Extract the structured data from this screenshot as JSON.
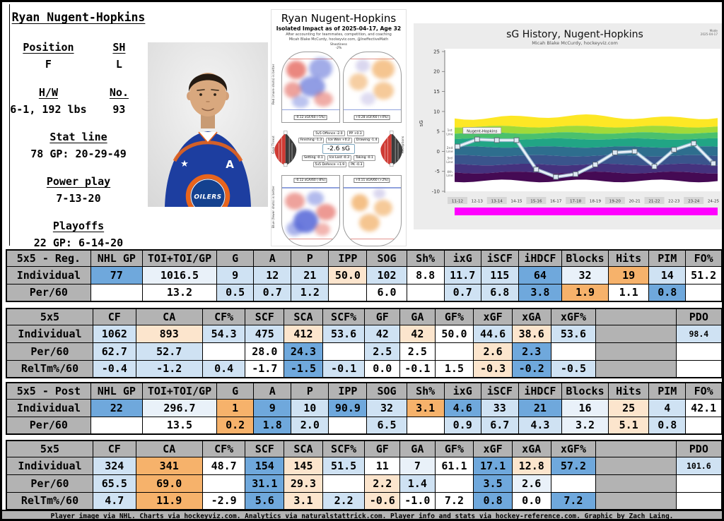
{
  "player_panel": {
    "name": "Ryan Nugent-Hopkins",
    "position_label": "Position",
    "position": "F",
    "shoots_label": "SH",
    "shoots": "L",
    "hw_label": "H/W",
    "hw": "6-1, 192 lbs",
    "number_label": "No.",
    "number": "93",
    "statline_label": "Stat line",
    "statline": "78 GP: 20-29-49",
    "pp_label": "Power play",
    "pp": "7-13-20",
    "playoffs_label": "Playoffs",
    "playoffs": "22 GP: 6-14-20"
  },
  "photo": {
    "jersey_logo": "OILERS",
    "alternate_letter": "A",
    "jersey_color": "#1d3ea0",
    "accent_color": "#e8641c"
  },
  "impact_card": {
    "title": "Ryan Nugent-Hopkins",
    "subtitle": "Isolated Impact as of 2025-04-17, Age 32",
    "note1": "After accounting for teammates, competition, and coaching",
    "note2": "Micah Blake McCurdy, hockeyviz.com, @IneffectiveMath",
    "shootiness_label": "Shootiness",
    "shootiness_value": "-2%",
    "axis_top": "Red (more shots) is better",
    "axis_bottom": "Blue (fewer shots) is better",
    "violin_left_label": "Goal Threat",
    "violin_right_label": "Receptions",
    "offence_left": "-0.12 xGF/60 (-5%)",
    "offence_right": "+0.28 xGF/60 (+4%)",
    "defence_left": "-0.12 xGA/60 (-8%)",
    "defence_right": "+0.11 xGA/60 (+2%)",
    "center_value": "-2.6 sG",
    "node_rows": [
      [
        "5v5 Offence -2.0",
        "PP +0.3"
      ],
      [
        "Finishing -1.3",
        "Ice Won +0.2",
        "Drawing -1.4"
      ],
      [
        "Setting -0.1",
        "Ice Lost -0.3",
        "Taking -0.1"
      ],
      [
        "5v5 Defence +1.9",
        "PK -0.3"
      ]
    ]
  },
  "chart_data": {
    "type": "line",
    "title": "sG History, Nugent-Hopkins",
    "subtitle": "Micah Blake McCurdy, hockeyviz.com",
    "corner_note_1": "Mode",
    "corner_note_2": "2025-04-17",
    "ylabel": "sG",
    "ylim": [
      -10,
      25
    ],
    "yticks": [
      25,
      20,
      15,
      10,
      5,
      0,
      -5,
      -10
    ],
    "categories": [
      "11-12",
      "12-13",
      "13-14",
      "14-15",
      "15-16",
      "16-17",
      "17-18",
      "18-19",
      "19-20",
      "20-21",
      "21-22",
      "22-23",
      "23-24",
      "24-25"
    ],
    "series": [
      {
        "name": "Nugent-Hopkins",
        "values": [
          1.2,
          3.0,
          2.8,
          2.8,
          -4.5,
          -6.4,
          -5.7,
          -3.3,
          -0.3,
          0.0,
          -3.8,
          0.4,
          2.0,
          -3.0
        ]
      }
    ],
    "band_labels": [
      "1st Line",
      "2nd Line",
      "3rd Line",
      "4th Line"
    ],
    "band_colors": [
      "#fde725",
      "#a0da39",
      "#4ac16d",
      "#21a585",
      "#2e6e8e",
      "#3a548c",
      "#45327e",
      "#450a54"
    ],
    "footer_bar_color": "#ff00ff",
    "grid": false,
    "legend_position": "on-line"
  },
  "tables": [
    {
      "title": "5x5 - Reg.",
      "col_pcts": [
        11.9,
        7.3,
        10.5,
        5.2,
        5.3,
        5.3,
        5.4,
        5.6,
        5.3,
        5.2,
        5.3,
        6.1,
        6.6,
        5.7,
        5.2,
        5.1
      ],
      "columns": [
        "NHL GP",
        "TOI+TOI/GP",
        "G",
        "A",
        "P",
        "IPP",
        "SOG",
        "Sh%",
        "ixG",
        "iSCF",
        "iHDCF",
        "Blocks",
        "Hits",
        "PIM",
        "FO%"
      ],
      "rows": [
        {
          "label": "Individual",
          "cells": [
            [
              "77",
              "b3"
            ],
            [
              "1016.5",
              "b1"
            ],
            [
              "9",
              "b2"
            ],
            [
              "12",
              "b2"
            ],
            [
              "21",
              "b2"
            ],
            [
              "50.0",
              "o1"
            ],
            [
              "102",
              "b2"
            ],
            [
              "8.8",
              "w"
            ],
            [
              "11.7",
              "b2"
            ],
            [
              "115",
              "b2"
            ],
            [
              "64",
              "b3"
            ],
            [
              "32",
              "b1"
            ],
            [
              "19",
              "o2"
            ],
            [
              "14",
              "b2"
            ],
            [
              "51.2",
              "w"
            ]
          ]
        },
        {
          "label": "Per/60",
          "cells": [
            [
              "",
              "w"
            ],
            [
              "13.2",
              "w"
            ],
            [
              "0.5",
              "b2"
            ],
            [
              "0.7",
              "b2"
            ],
            [
              "1.2",
              "b2"
            ],
            [
              "",
              "w"
            ],
            [
              "6.0",
              "w"
            ],
            [
              "",
              "w"
            ],
            [
              "0.7",
              "b2"
            ],
            [
              "6.8",
              "b2"
            ],
            [
              "3.8",
              "b3"
            ],
            [
              "1.9",
              "o2"
            ],
            [
              "1.1",
              "w"
            ],
            [
              "0.8",
              "b3"
            ],
            [
              "",
              "w"
            ]
          ]
        }
      ]
    },
    {
      "title": "5x5",
      "col_pcts": [
        12.1,
        6.0,
        9.3,
        6.0,
        5.4,
        5.4,
        5.9,
        4.9,
        4.9,
        5.4,
        5.4,
        5.4,
        6.3,
        11.2,
        6.4
      ],
      "columns": [
        "CF",
        "CA",
        "CF%",
        "SCF",
        "SCA",
        "SCF%",
        "GF",
        "GA",
        "GF%",
        "xGF",
        "xGA",
        "xGF%",
        "",
        "PDO"
      ],
      "rows": [
        {
          "label": "Individual",
          "cells": [
            [
              "1062",
              "b2"
            ],
            [
              "893",
              "o1"
            ],
            [
              "54.3",
              "b2"
            ],
            [
              "475",
              "b2"
            ],
            [
              "412",
              "o1"
            ],
            [
              "53.6",
              "b2"
            ],
            [
              "42",
              "b2"
            ],
            [
              "42",
              "o1"
            ],
            [
              "50.0",
              "w"
            ],
            [
              "44.6",
              "b2"
            ],
            [
              "38.6",
              "o1"
            ],
            [
              "53.6",
              "b2"
            ],
            [
              "",
              "g"
            ],
            [
              "98.4",
              "b2",
              "s"
            ]
          ]
        },
        {
          "label": "Per/60",
          "cells": [
            [
              "62.7",
              "b2"
            ],
            [
              "52.7",
              "b2"
            ],
            [
              "",
              "w"
            ],
            [
              "28.0",
              "w"
            ],
            [
              "24.3",
              "b3"
            ],
            [
              "",
              "w"
            ],
            [
              "2.5",
              "b2"
            ],
            [
              "2.5",
              "w"
            ],
            [
              "",
              "w"
            ],
            [
              "2.6",
              "o1"
            ],
            [
              "2.3",
              "b3"
            ],
            [
              "",
              "w"
            ],
            [
              "",
              "g"
            ],
            [
              "",
              "w"
            ]
          ]
        },
        {
          "label": "RelTm%/60",
          "cells": [
            [
              "-0.4",
              "b2"
            ],
            [
              "-1.2",
              "b2"
            ],
            [
              "0.4",
              "b2"
            ],
            [
              "-1.7",
              "w"
            ],
            [
              "-1.5",
              "b3"
            ],
            [
              "-0.1",
              "b2"
            ],
            [
              "0.0",
              "w"
            ],
            [
              "-0.1",
              "w"
            ],
            [
              "1.5",
              "w"
            ],
            [
              "-0.3",
              "o1"
            ],
            [
              "-0.2",
              "b3"
            ],
            [
              "-0.5",
              "b2"
            ],
            [
              "",
              "g"
            ],
            [
              "",
              "w"
            ]
          ]
        }
      ]
    },
    {
      "title": "5x5 - Post",
      "col_pcts": [
        11.9,
        7.3,
        10.5,
        5.2,
        5.3,
        5.3,
        5.4,
        5.6,
        5.3,
        5.2,
        5.3,
        6.1,
        6.6,
        5.7,
        5.2,
        5.1
      ],
      "columns": [
        "NHL GP",
        "TOI+TOI/GP",
        "G",
        "A",
        "P",
        "IPP",
        "SOG",
        "Sh%",
        "ixG",
        "iSCF",
        "iHDCF",
        "Blocks",
        "Hits",
        "PIM",
        "FO%"
      ],
      "rows": [
        {
          "label": "Individual",
          "cells": [
            [
              "22",
              "b3"
            ],
            [
              "296.7",
              "b1"
            ],
            [
              "1",
              "o2"
            ],
            [
              "9",
              "b3"
            ],
            [
              "10",
              "b2"
            ],
            [
              "90.9",
              "b3"
            ],
            [
              "32",
              "b2"
            ],
            [
              "3.1",
              "o2"
            ],
            [
              "4.6",
              "b3"
            ],
            [
              "33",
              "b2"
            ],
            [
              "21",
              "b3"
            ],
            [
              "16",
              "b1"
            ],
            [
              "25",
              "o1"
            ],
            [
              "4",
              "b2"
            ],
            [
              "42.1",
              "w"
            ]
          ]
        },
        {
          "label": "Per/60",
          "cells": [
            [
              "",
              "w"
            ],
            [
              "13.5",
              "w"
            ],
            [
              "0.2",
              "o2"
            ],
            [
              "1.8",
              "b3"
            ],
            [
              "2.0",
              "b2"
            ],
            [
              "",
              "w"
            ],
            [
              "6.5",
              "b2"
            ],
            [
              "",
              "w"
            ],
            [
              "0.9",
              "b2"
            ],
            [
              "6.7",
              "b2"
            ],
            [
              "4.3",
              "b2"
            ],
            [
              "3.2",
              "b1"
            ],
            [
              "5.1",
              "o1"
            ],
            [
              "0.8",
              "b2"
            ],
            [
              "",
              "w"
            ]
          ]
        }
      ]
    },
    {
      "title": "5x5",
      "col_pcts": [
        12.1,
        6.0,
        9.3,
        6.0,
        5.4,
        5.4,
        5.9,
        4.9,
        4.9,
        5.4,
        5.4,
        5.4,
        6.3,
        11.2,
        6.4
      ],
      "columns": [
        "CF",
        "CA",
        "CF%",
        "SCF",
        "SCA",
        "SCF%",
        "GF",
        "GA",
        "GF%",
        "xGF",
        "xGA",
        "xGF%",
        "",
        "PDO"
      ],
      "rows": [
        {
          "label": "Individual",
          "cells": [
            [
              "324",
              "b2"
            ],
            [
              "341",
              "o2"
            ],
            [
              "48.7",
              "w"
            ],
            [
              "154",
              "b3"
            ],
            [
              "145",
              "o1"
            ],
            [
              "51.5",
              "b2"
            ],
            [
              "11",
              "w"
            ],
            [
              "7",
              "b1"
            ],
            [
              "61.1",
              "w"
            ],
            [
              "17.1",
              "b3"
            ],
            [
              "12.8",
              "o1"
            ],
            [
              "57.2",
              "b3"
            ],
            [
              "",
              "g"
            ],
            [
              "101.6",
              "b2",
              "s"
            ]
          ]
        },
        {
          "label": "Per/60",
          "cells": [
            [
              "65.5",
              "b2"
            ],
            [
              "69.0",
              "o2"
            ],
            [
              "",
              "w"
            ],
            [
              "31.1",
              "b3"
            ],
            [
              "29.3",
              "o1"
            ],
            [
              "",
              "w"
            ],
            [
              "2.2",
              "o1"
            ],
            [
              "1.4",
              "b2"
            ],
            [
              "",
              "w"
            ],
            [
              "3.5",
              "b3"
            ],
            [
              "2.6",
              "b1"
            ],
            [
              "",
              "w"
            ],
            [
              "",
              "g"
            ],
            [
              "",
              "w"
            ]
          ]
        },
        {
          "label": "RelTm%/60",
          "cells": [
            [
              "4.7",
              "b2"
            ],
            [
              "11.9",
              "o2"
            ],
            [
              "-2.9",
              "w"
            ],
            [
              "5.6",
              "b3"
            ],
            [
              "3.1",
              "o1"
            ],
            [
              "2.2",
              "b2"
            ],
            [
              "-0.6",
              "o1"
            ],
            [
              "-1.0",
              "w"
            ],
            [
              "7.2",
              "w"
            ],
            [
              "0.8",
              "b3"
            ],
            [
              "0.0",
              "w"
            ],
            [
              "7.2",
              "b3"
            ],
            [
              "",
              "g"
            ],
            [
              "",
              "w"
            ]
          ]
        }
      ]
    }
  ],
  "footer": {
    "credit": "Player image via NHL. Charts via hockeyviz.com. Analytics via naturalstattrick.com. Player info and stats via hockey-reference.com. Graphic by Zach Laing."
  }
}
